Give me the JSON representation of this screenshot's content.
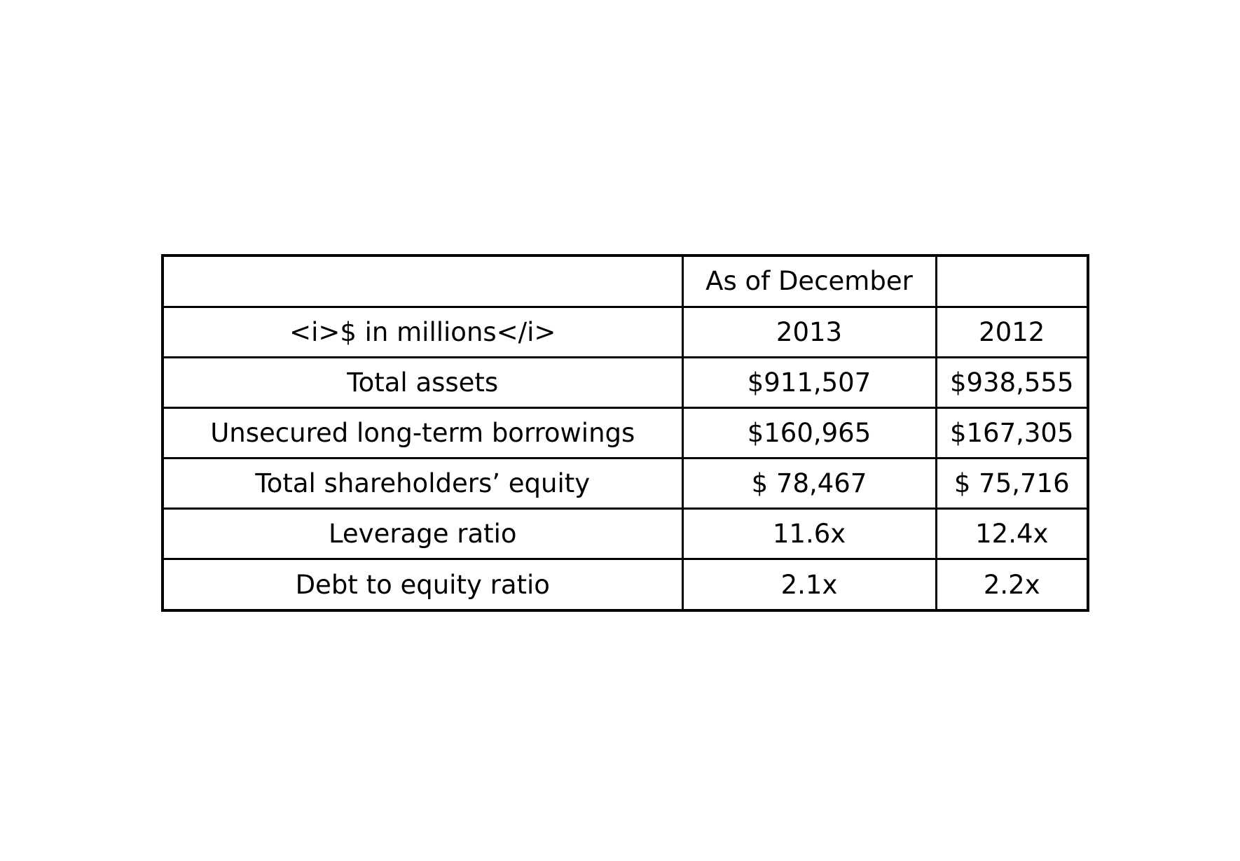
{
  "chart_data": {
    "type": "table",
    "header_group": {
      "label": "As of December"
    },
    "columns": [
      "<i>$ in millions</i>",
      "2013",
      "2012"
    ],
    "rows": [
      {
        "label": "Total assets",
        "values": [
          "$911,507",
          "$938,555"
        ]
      },
      {
        "label": "Unsecured long-term borrowings",
        "values": [
          "$160,965",
          "$167,305"
        ]
      },
      {
        "label": "Total shareholders’ equity",
        "values": [
          "$ 78,467",
          "$ 75,716"
        ]
      },
      {
        "label": "Leverage ratio",
        "values": [
          "11.6x",
          "12.4x"
        ]
      },
      {
        "label": "Debt to equity ratio",
        "values": [
          "2.1x",
          "2.2x"
        ]
      }
    ]
  }
}
